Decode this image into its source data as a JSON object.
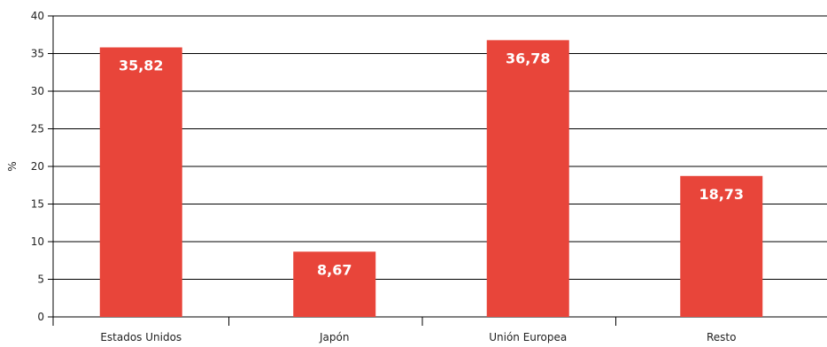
{
  "chart_data": {
    "type": "bar",
    "categories": [
      "Estados Unidos",
      "Japón",
      "Unión Europea",
      "Resto"
    ],
    "values": [
      35.82,
      8.67,
      36.78,
      18.73
    ],
    "value_labels": [
      "35,82",
      "8,67",
      "36,78",
      "18,73"
    ],
    "ylabel": "%",
    "ylim": [
      0,
      40
    ],
    "yticks": [
      0,
      5,
      10,
      15,
      20,
      25,
      30,
      35,
      40
    ],
    "grid": true,
    "legend": "none",
    "bar_color": "#e8453a",
    "grid_color": "#000000"
  }
}
